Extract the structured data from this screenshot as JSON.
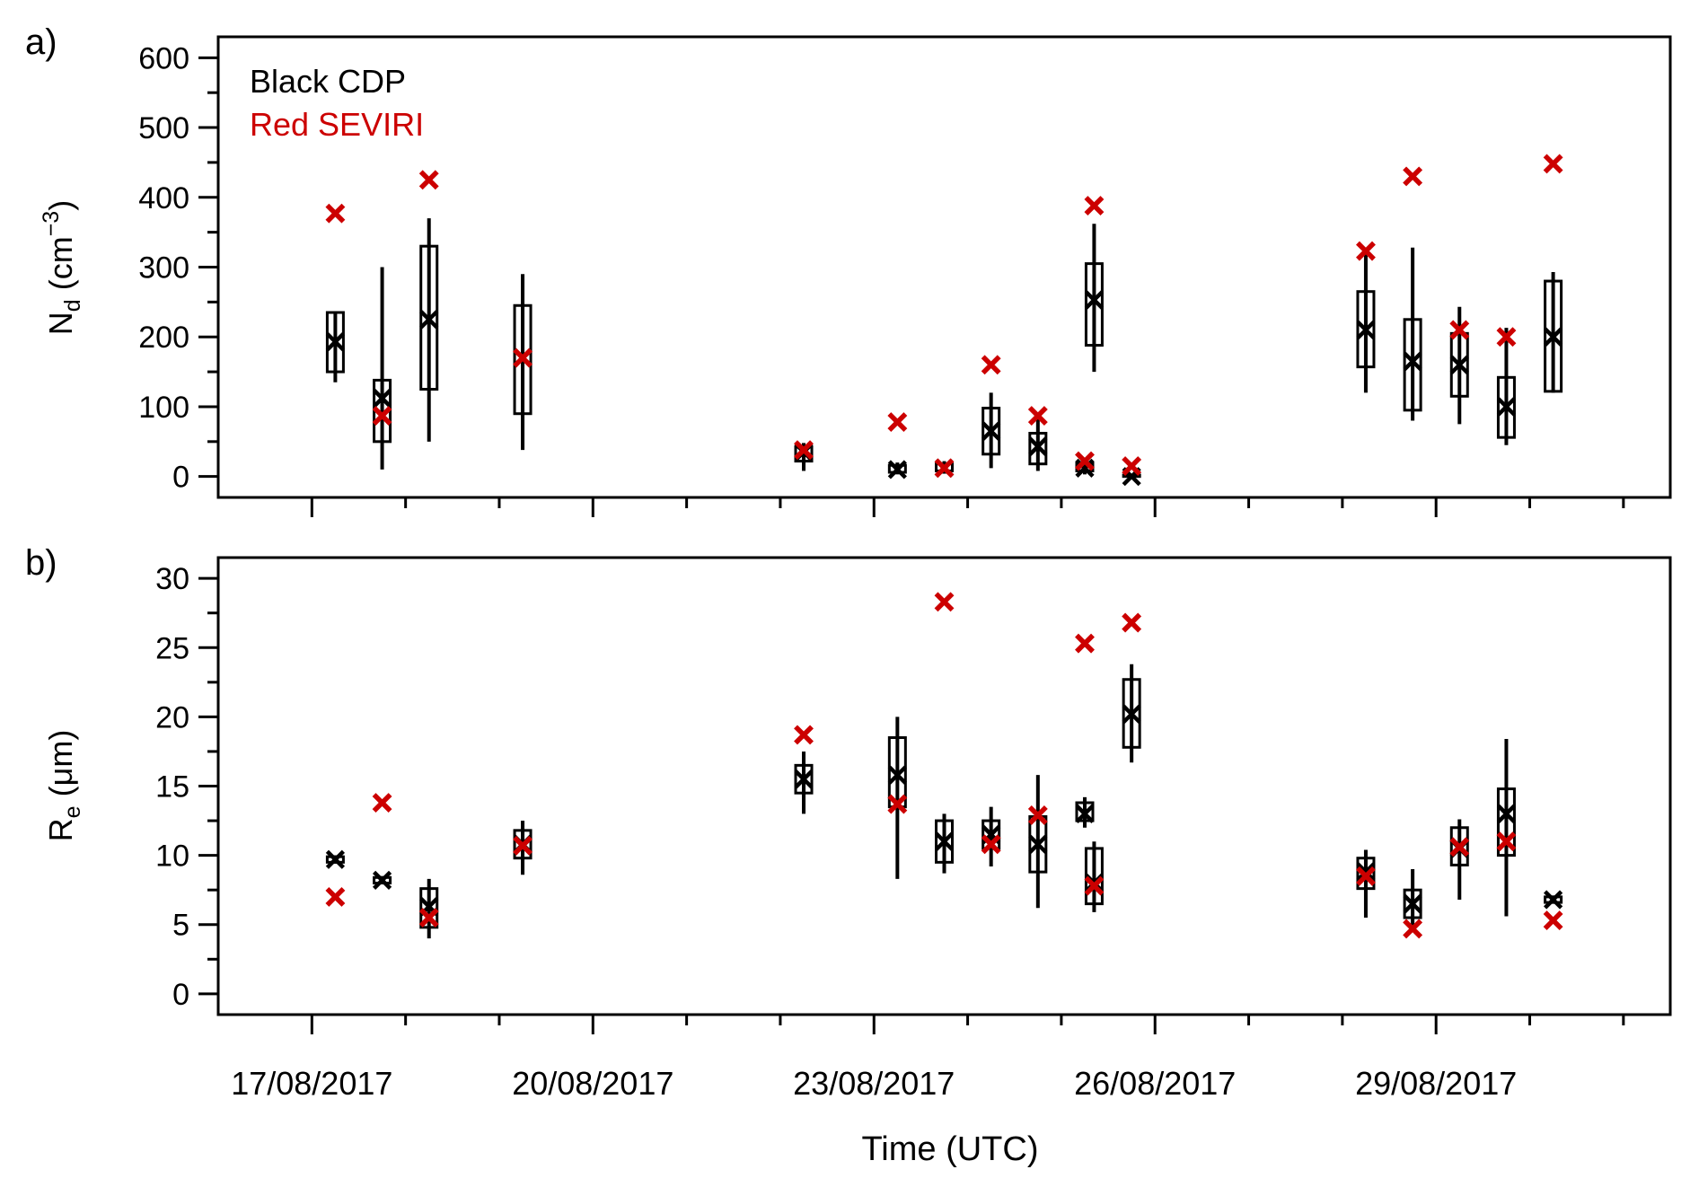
{
  "figure": {
    "xlabel": "Time (UTC)",
    "x_ticks": [
      {
        "day": 17,
        "label": "17/08/2017"
      },
      {
        "day": 20,
        "label": "20/08/2017"
      },
      {
        "day": 23,
        "label": "23/08/2017"
      },
      {
        "day": 26,
        "label": "26/08/2017"
      },
      {
        "day": 29,
        "label": "29/08/2017"
      }
    ],
    "x_minor_ticks_days": [
      18,
      19,
      21,
      22,
      24,
      25,
      27,
      28,
      30,
      31
    ],
    "xlim_days": [
      16,
      31.5
    ]
  },
  "colors": {
    "cdp": "#000000",
    "seviri": "#cc0000",
    "axis": "#000000"
  },
  "chart_data": [
    {
      "panel_label": "a)",
      "type": "scatter",
      "subtype": "box-and-whisker with markers",
      "xaxis": "date (August 2017)",
      "ylabel_main": "N",
      "ylabel_sub": "d",
      "ylabel_unit": " (cm",
      "ylabel_exp": "−3",
      "ylabel_close": ")",
      "ylim": [
        -30,
        630
      ],
      "yticks": [
        0,
        100,
        200,
        300,
        400,
        500,
        600
      ],
      "yminor": [
        50,
        150,
        250,
        350,
        450,
        550
      ],
      "legend": [
        {
          "text": "Black CDP",
          "color": "#000000"
        },
        {
          "text": "Red SEVIRI",
          "color": "#cc0000"
        }
      ],
      "legend_position": "top-left",
      "series": [
        {
          "name": "CDP",
          "marker": "x",
          "color": "#000000",
          "points": [
            {
              "x": 17.25,
              "median": 193,
              "q1": 150,
              "q3": 235,
              "lo": 135,
              "hi": 235
            },
            {
              "x": 17.75,
              "median": 112,
              "q1": 50,
              "q3": 138,
              "lo": 10,
              "hi": 300
            },
            {
              "x": 18.25,
              "median": 225,
              "q1": 125,
              "q3": 330,
              "lo": 50,
              "hi": 370
            },
            {
              "x": 19.25,
              "median": 170,
              "q1": 90,
              "q3": 245,
              "lo": 38,
              "hi": 290
            },
            {
              "x": 22.25,
              "median": 35,
              "q1": 22,
              "q3": 42,
              "lo": 8,
              "hi": 48
            },
            {
              "x": 23.25,
              "median": 10,
              "q1": 6,
              "q3": 16,
              "lo": 3,
              "hi": 20
            },
            {
              "x": 23.75,
              "median": 12,
              "q1": 8,
              "q3": 18,
              "lo": 4,
              "hi": 22
            },
            {
              "x": 24.25,
              "median": 65,
              "q1": 32,
              "q3": 98,
              "lo": 12,
              "hi": 120
            },
            {
              "x": 24.75,
              "median": 43,
              "q1": 18,
              "q3": 62,
              "lo": 8,
              "hi": 85
            },
            {
              "x": 25.25,
              "median": 12,
              "q1": 8,
              "q3": 20,
              "lo": 3,
              "hi": 25
            },
            {
              "x": 25.35,
              "median": 253,
              "q1": 188,
              "q3": 305,
              "lo": 150,
              "hi": 362
            },
            {
              "x": 25.75,
              "median": 0,
              "q1": 0,
              "q3": 2,
              "lo": 0,
              "hi": 3
            },
            {
              "x": 28.25,
              "median": 210,
              "q1": 157,
              "q3": 265,
              "lo": 120,
              "hi": 322
            },
            {
              "x": 28.75,
              "median": 165,
              "q1": 95,
              "q3": 225,
              "lo": 80,
              "hi": 328
            },
            {
              "x": 29.25,
              "median": 160,
              "q1": 115,
              "q3": 205,
              "lo": 75,
              "hi": 243
            },
            {
              "x": 29.75,
              "median": 100,
              "q1": 56,
              "q3": 142,
              "lo": 45,
              "hi": 213
            },
            {
              "x": 30.25,
              "median": 200,
              "q1": 122,
              "q3": 280,
              "lo": 120,
              "hi": 293
            }
          ]
        },
        {
          "name": "SEVIRI",
          "marker": "x",
          "color": "#cc0000",
          "points": [
            {
              "x": 17.25,
              "y": 377
            },
            {
              "x": 17.75,
              "y": 87
            },
            {
              "x": 18.25,
              "y": 425
            },
            {
              "x": 19.25,
              "y": 170
            },
            {
              "x": 22.25,
              "y": 38
            },
            {
              "x": 23.25,
              "y": 78
            },
            {
              "x": 23.75,
              "y": 12
            },
            {
              "x": 24.25,
              "y": 160
            },
            {
              "x": 24.75,
              "y": 87
            },
            {
              "x": 25.25,
              "y": 22
            },
            {
              "x": 25.35,
              "y": 388
            },
            {
              "x": 25.75,
              "y": 15
            },
            {
              "x": 28.25,
              "y": 323
            },
            {
              "x": 28.75,
              "y": 430
            },
            {
              "x": 29.25,
              "y": 210
            },
            {
              "x": 29.75,
              "y": 200
            },
            {
              "x": 30.25,
              "y": 448
            }
          ]
        }
      ]
    },
    {
      "panel_label": "b)",
      "type": "scatter",
      "subtype": "box-and-whisker with markers",
      "xaxis": "date (August 2017)",
      "ylabel_main": "R",
      "ylabel_sub": "e",
      "ylabel_unit": " (μm)",
      "ylim": [
        -1.5,
        31.5
      ],
      "yticks": [
        0,
        5,
        10,
        15,
        20,
        25,
        30
      ],
      "yminor": [
        2.5,
        7.5,
        12.5,
        17.5,
        22.5,
        27.5
      ],
      "series": [
        {
          "name": "CDP",
          "marker": "x",
          "color": "#000000",
          "points": [
            {
              "x": 17.25,
              "median": 9.7,
              "q1": 9.5,
              "q3": 9.9,
              "lo": 9.4,
              "hi": 10.0
            },
            {
              "x": 17.75,
              "median": 8.2,
              "q1": 8.0,
              "q3": 8.4,
              "lo": 7.9,
              "hi": 8.5
            },
            {
              "x": 18.25,
              "median": 6.3,
              "q1": 4.8,
              "q3": 7.6,
              "lo": 4.0,
              "hi": 8.3
            },
            {
              "x": 19.25,
              "median": 10.8,
              "q1": 9.8,
              "q3": 11.8,
              "lo": 8.6,
              "hi": 12.5
            },
            {
              "x": 22.25,
              "median": 15.5,
              "q1": 14.5,
              "q3": 16.5,
              "lo": 13.0,
              "hi": 17.5
            },
            {
              "x": 23.25,
              "median": 15.8,
              "q1": 13.5,
              "q3": 18.5,
              "lo": 8.3,
              "hi": 20.0
            },
            {
              "x": 23.75,
              "median": 11.0,
              "q1": 9.5,
              "q3": 12.5,
              "lo": 8.7,
              "hi": 13.0
            },
            {
              "x": 24.25,
              "median": 11.5,
              "q1": 10.5,
              "q3": 12.5,
              "lo": 9.2,
              "hi": 13.5
            },
            {
              "x": 24.75,
              "median": 10.8,
              "q1": 8.8,
              "q3": 12.8,
              "lo": 6.2,
              "hi": 15.8
            },
            {
              "x": 25.25,
              "median": 13.0,
              "q1": 12.5,
              "q3": 13.8,
              "lo": 12.0,
              "hi": 14.2
            },
            {
              "x": 25.35,
              "median": 8.0,
              "q1": 6.5,
              "q3": 10.5,
              "lo": 5.9,
              "hi": 11.0
            },
            {
              "x": 25.75,
              "median": 20.2,
              "q1": 17.8,
              "q3": 22.7,
              "lo": 16.7,
              "hi": 23.8
            },
            {
              "x": 28.25,
              "median": 8.8,
              "q1": 7.6,
              "q3": 9.8,
              "lo": 5.5,
              "hi": 10.4
            },
            {
              "x": 28.75,
              "median": 6.5,
              "q1": 5.5,
              "q3": 7.5,
              "lo": 4.5,
              "hi": 9.0
            },
            {
              "x": 29.25,
              "median": 10.5,
              "q1": 9.3,
              "q3": 12.0,
              "lo": 6.8,
              "hi": 12.6
            },
            {
              "x": 29.75,
              "median": 13.0,
              "q1": 10.0,
              "q3": 14.8,
              "lo": 5.6,
              "hi": 18.4
            },
            {
              "x": 30.25,
              "median": 6.8,
              "q1": 6.6,
              "q3": 7.0,
              "lo": 6.5,
              "hi": 7.1
            }
          ]
        },
        {
          "name": "SEVIRI",
          "marker": "x",
          "color": "#cc0000",
          "points": [
            {
              "x": 17.25,
              "y": 7.0
            },
            {
              "x": 17.75,
              "y": 13.8
            },
            {
              "x": 18.25,
              "y": 5.5
            },
            {
              "x": 19.25,
              "y": 10.7
            },
            {
              "x": 22.25,
              "y": 18.7
            },
            {
              "x": 23.25,
              "y": 13.7
            },
            {
              "x": 23.75,
              "y": 28.3
            },
            {
              "x": 24.25,
              "y": 10.8
            },
            {
              "x": 24.75,
              "y": 12.9
            },
            {
              "x": 25.25,
              "y": 25.3
            },
            {
              "x": 25.35,
              "y": 7.8
            },
            {
              "x": 25.75,
              "y": 26.8
            },
            {
              "x": 28.25,
              "y": 8.5
            },
            {
              "x": 28.75,
              "y": 4.7
            },
            {
              "x": 29.25,
              "y": 10.6
            },
            {
              "x": 29.75,
              "y": 11.0
            },
            {
              "x": 30.25,
              "y": 5.3
            }
          ]
        }
      ]
    }
  ]
}
